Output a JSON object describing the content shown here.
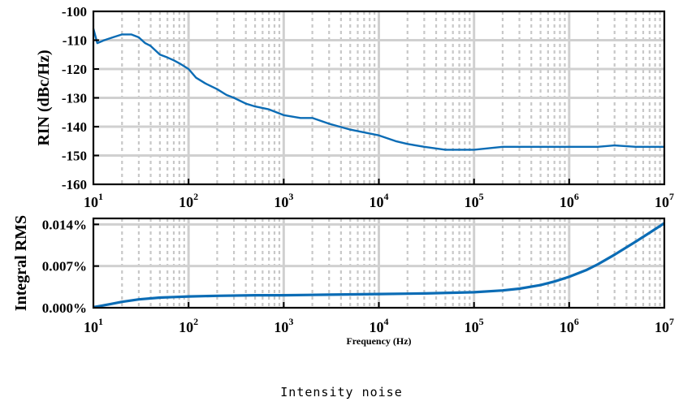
{
  "caption": "Intensity noise",
  "chart_data": [
    {
      "type": "line",
      "title": "",
      "xlabel": "",
      "ylabel": "RIN (dBc/Hz)",
      "xscale": "log",
      "xlim": [
        10,
        10000000
      ],
      "ylim": [
        -160,
        -100
      ],
      "x_ticks": [
        {
          "base": "10",
          "exp": "1"
        },
        {
          "base": "10",
          "exp": "2"
        },
        {
          "base": "10",
          "exp": "3"
        },
        {
          "base": "10",
          "exp": "4"
        },
        {
          "base": "10",
          "exp": "5"
        },
        {
          "base": "10",
          "exp": "6"
        },
        {
          "base": "10",
          "exp": "7"
        }
      ],
      "y_ticks": [
        "-100",
        "-110",
        "-120",
        "-130",
        "-140",
        "-150",
        "-160"
      ],
      "grid": true,
      "color": "#0b6cb5",
      "series": [
        {
          "x": [
            10,
            11,
            13,
            16,
            20,
            25,
            30,
            35,
            40,
            50,
            60,
            70,
            80,
            100,
            120,
            150,
            200,
            250,
            300,
            400,
            500,
            700,
            1000,
            1500,
            2000,
            3000,
            5000,
            7000,
            10000,
            15000,
            20000,
            30000,
            50000,
            70000,
            100000,
            200000,
            500000,
            1000000,
            2000000,
            3000000,
            5000000,
            10000000
          ],
          "y": [
            -106,
            -111,
            -110,
            -109,
            -108,
            -108,
            -109,
            -111,
            -112,
            -115,
            -116,
            -117,
            -118,
            -120,
            -123,
            -125,
            -127,
            -129,
            -130,
            -132,
            -133,
            -134,
            -136,
            -137,
            -137,
            -139,
            -141,
            -142,
            -143,
            -145,
            -146,
            -147,
            -148,
            -148,
            -148,
            -147,
            -147,
            -147,
            -147,
            -146.5,
            -147,
            -147
          ]
        }
      ]
    },
    {
      "type": "line",
      "title": "",
      "xlabel": "Frequency (Hz)",
      "ylabel": "Integral RMS",
      "xscale": "log",
      "xlim": [
        10,
        10000000
      ],
      "ylim": [
        0,
        0.015
      ],
      "x_ticks": [
        {
          "base": "10",
          "exp": "1"
        },
        {
          "base": "10",
          "exp": "2"
        },
        {
          "base": "10",
          "exp": "3"
        },
        {
          "base": "10",
          "exp": "4"
        },
        {
          "base": "10",
          "exp": "5"
        },
        {
          "base": "10",
          "exp": "6"
        },
        {
          "base": "10",
          "exp": "7"
        }
      ],
      "y_ticks": [
        {
          "value": 0.014,
          "label": "0.014%"
        },
        {
          "value": 0.007,
          "label": "0.007%"
        },
        {
          "value": 0.0,
          "label": "0.000%"
        }
      ],
      "grid": true,
      "color": "#0b6cb5",
      "series": [
        {
          "x": [
            10,
            15,
            20,
            30,
            50,
            70,
            100,
            200,
            500,
            1000,
            3000,
            10000,
            30000,
            100000,
            200000,
            300000,
            500000,
            700000,
            1000000,
            1500000,
            2000000,
            3000000,
            5000000,
            7000000,
            10000000
          ],
          "y": [
            0.0001,
            0.0006,
            0.001,
            0.0014,
            0.0017,
            0.0018,
            0.0019,
            0.002,
            0.0021,
            0.0021,
            0.0022,
            0.0023,
            0.0024,
            0.0026,
            0.0029,
            0.0032,
            0.0038,
            0.0044,
            0.0052,
            0.0063,
            0.0073,
            0.0089,
            0.0111,
            0.0126,
            0.0142
          ]
        }
      ]
    }
  ]
}
